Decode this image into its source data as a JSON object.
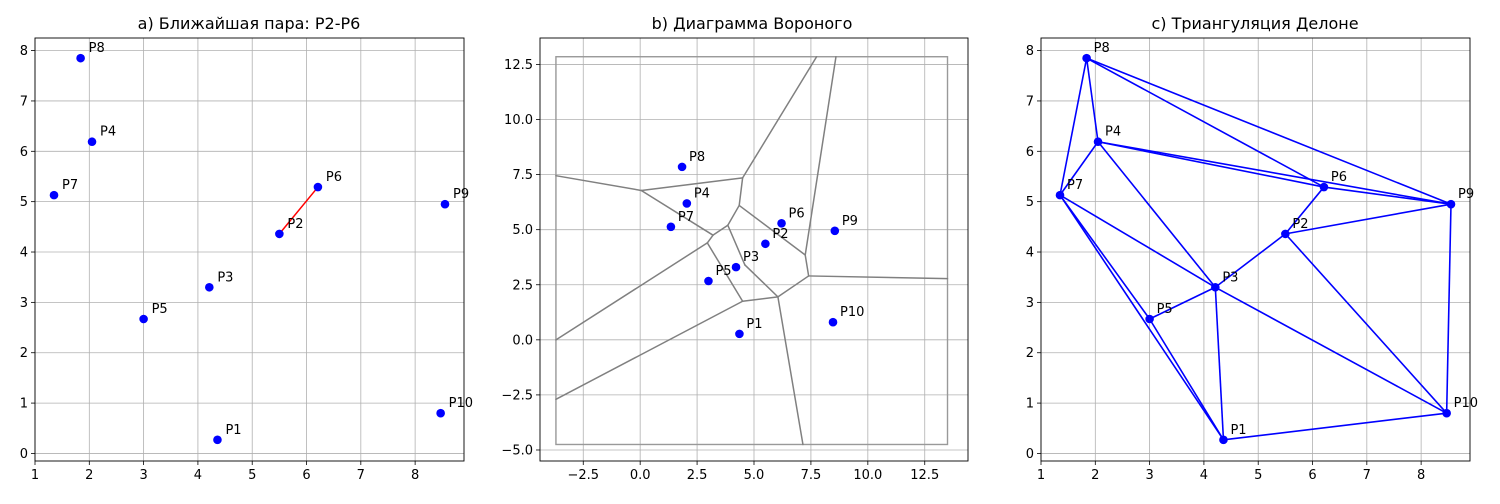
{
  "chart_data": [
    {
      "type": "scatter",
      "title": "a) Ближайшая пара: P2-P6",
      "xlim": [
        1.0,
        8.9
      ],
      "ylim": [
        -0.15,
        8.25
      ],
      "xticks": [
        1,
        2,
        3,
        4,
        5,
        6,
        7,
        8
      ],
      "yticks": [
        0,
        1,
        2,
        3,
        4,
        5,
        6,
        7,
        8
      ],
      "grid": true,
      "points": [
        {
          "label": "P1",
          "x": 4.36,
          "y": 0.27
        },
        {
          "label": "P2",
          "x": 5.5,
          "y": 4.36
        },
        {
          "label": "P3",
          "x": 4.21,
          "y": 3.3
        },
        {
          "label": "P4",
          "x": 2.05,
          "y": 6.19
        },
        {
          "label": "P5",
          "x": 3.0,
          "y": 2.67
        },
        {
          "label": "P6",
          "x": 6.21,
          "y": 5.29
        },
        {
          "label": "P7",
          "x": 1.35,
          "y": 5.13
        },
        {
          "label": "P8",
          "x": 1.84,
          "y": 7.85
        },
        {
          "label": "P9",
          "x": 8.55,
          "y": 4.95
        },
        {
          "label": "P10",
          "x": 8.47,
          "y": 0.8
        }
      ],
      "closest_pair": [
        "P2",
        "P6"
      ],
      "point_color": "#0000ff",
      "pair_color": "#ff0000"
    },
    {
      "type": "line",
      "title": "b) Диаграмма Вороного",
      "xlim": [
        -4.4,
        14.4
      ],
      "ylim": [
        -5.5,
        13.7
      ],
      "xticks": [
        -2.5,
        0.0,
        2.5,
        5.0,
        7.5,
        10.0,
        12.5
      ],
      "yticks": [
        -5.0,
        -2.5,
        0.0,
        2.5,
        5.0,
        7.5,
        10.0,
        12.5
      ],
      "xtick_labels": [
        "−2.5",
        "0.0",
        "2.5",
        "5.0",
        "7.5",
        "10.0",
        "12.5"
      ],
      "ytick_labels": [
        "−5.0",
        "−2.5",
        "0.0",
        "2.5",
        "5.0",
        "7.5",
        "10.0",
        "12.5"
      ],
      "grid": true,
      "bounding_box": {
        "x": [
          -3.7,
          13.5
        ],
        "y": [
          -4.75,
          12.85
        ]
      },
      "edges": [
        [
          [
            -3.7,
            7.45
          ],
          [
            0.05,
            6.78
          ]
        ],
        [
          [
            0.05,
            6.78
          ],
          [
            4.5,
            7.35
          ]
        ],
        [
          [
            0.05,
            6.78
          ],
          [
            3.2,
            4.75
          ]
        ],
        [
          [
            4.5,
            7.35
          ],
          [
            4.35,
            6.1
          ]
        ],
        [
          [
            4.5,
            7.35
          ],
          [
            7.75,
            12.85
          ]
        ],
        [
          [
            4.35,
            6.1
          ],
          [
            3.85,
            5.2
          ]
        ],
        [
          [
            4.35,
            6.1
          ],
          [
            7.25,
            3.85
          ]
        ],
        [
          [
            3.85,
            5.2
          ],
          [
            3.2,
            4.75
          ]
        ],
        [
          [
            3.85,
            5.2
          ],
          [
            4.6,
            3.4
          ]
        ],
        [
          [
            3.2,
            4.75
          ],
          [
            2.95,
            4.4
          ]
        ],
        [
          [
            2.95,
            4.4
          ],
          [
            -3.7,
            0.0
          ]
        ],
        [
          [
            2.95,
            4.4
          ],
          [
            4.5,
            1.75
          ]
        ],
        [
          [
            4.6,
            3.4
          ],
          [
            6.05,
            1.95
          ]
        ],
        [
          [
            4.5,
            1.75
          ],
          [
            6.05,
            1.95
          ]
        ],
        [
          [
            4.5,
            1.75
          ],
          [
            -3.7,
            -2.7
          ]
        ],
        [
          [
            6.05,
            1.95
          ],
          [
            7.4,
            2.9
          ]
        ],
        [
          [
            6.05,
            1.95
          ],
          [
            7.15,
            -4.75
          ]
        ],
        [
          [
            7.25,
            3.85
          ],
          [
            7.4,
            2.9
          ]
        ],
        [
          [
            7.25,
            3.85
          ],
          [
            8.6,
            12.85
          ]
        ],
        [
          [
            7.4,
            2.9
          ],
          [
            13.5,
            2.78
          ]
        ]
      ],
      "edge_color": "#808080",
      "box_color": "#999999",
      "points": [
        {
          "label": "P1",
          "x": 4.36,
          "y": 0.27
        },
        {
          "label": "P2",
          "x": 5.5,
          "y": 4.36
        },
        {
          "label": "P3",
          "x": 4.21,
          "y": 3.3
        },
        {
          "label": "P4",
          "x": 2.05,
          "y": 6.19
        },
        {
          "label": "P5",
          "x": 3.0,
          "y": 2.67
        },
        {
          "label": "P6",
          "x": 6.21,
          "y": 5.29
        },
        {
          "label": "P7",
          "x": 1.35,
          "y": 5.13
        },
        {
          "label": "P8",
          "x": 1.84,
          "y": 7.85
        },
        {
          "label": "P9",
          "x": 8.55,
          "y": 4.95
        },
        {
          "label": "P10",
          "x": 8.47,
          "y": 0.8
        }
      ],
      "point_color": "#0000ff"
    },
    {
      "type": "line",
      "title": "c) Триангуляция Делоне",
      "xlim": [
        1.0,
        8.9
      ],
      "ylim": [
        -0.15,
        8.25
      ],
      "xticks": [
        1,
        2,
        3,
        4,
        5,
        6,
        7,
        8
      ],
      "yticks": [
        0,
        1,
        2,
        3,
        4,
        5,
        6,
        7,
        8
      ],
      "grid": true,
      "points": [
        {
          "label": "P1",
          "x": 4.36,
          "y": 0.27
        },
        {
          "label": "P2",
          "x": 5.5,
          "y": 4.36
        },
        {
          "label": "P3",
          "x": 4.21,
          "y": 3.3
        },
        {
          "label": "P4",
          "x": 2.05,
          "y": 6.19
        },
        {
          "label": "P5",
          "x": 3.0,
          "y": 2.67
        },
        {
          "label": "P6",
          "x": 6.21,
          "y": 5.29
        },
        {
          "label": "P7",
          "x": 1.35,
          "y": 5.13
        },
        {
          "label": "P8",
          "x": 1.84,
          "y": 7.85
        },
        {
          "label": "P9",
          "x": 8.55,
          "y": 4.95
        },
        {
          "label": "P10",
          "x": 8.47,
          "y": 0.8
        }
      ],
      "edges": [
        [
          "P8",
          "P4"
        ],
        [
          "P8",
          "P7"
        ],
        [
          "P8",
          "P6"
        ],
        [
          "P8",
          "P9"
        ],
        [
          "P4",
          "P7"
        ],
        [
          "P4",
          "P6"
        ],
        [
          "P4",
          "P9"
        ],
        [
          "P4",
          "P3"
        ],
        [
          "P7",
          "P3"
        ],
        [
          "P7",
          "P5"
        ],
        [
          "P7",
          "P1"
        ],
        [
          "P6",
          "P9"
        ],
        [
          "P6",
          "P2"
        ],
        [
          "P9",
          "P2"
        ],
        [
          "P9",
          "P10"
        ],
        [
          "P2",
          "P3"
        ],
        [
          "P2",
          "P10"
        ],
        [
          "P3",
          "P5"
        ],
        [
          "P3",
          "P1"
        ],
        [
          "P3",
          "P10"
        ],
        [
          "P5",
          "P1"
        ],
        [
          "P1",
          "P10"
        ]
      ],
      "color": "#0000ff"
    }
  ]
}
